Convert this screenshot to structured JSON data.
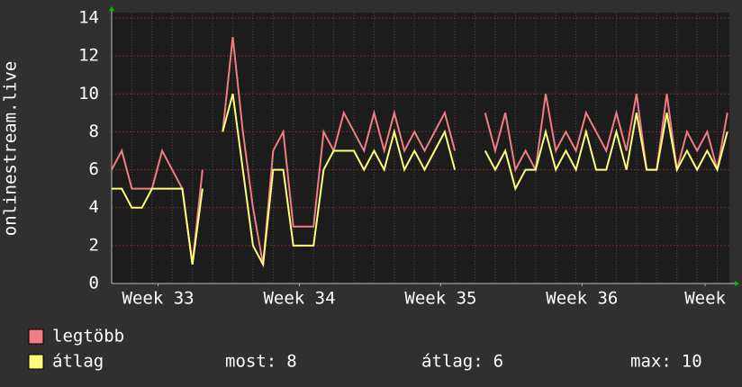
{
  "chart_data": {
    "type": "line",
    "ylabel": "onlinestream.live",
    "x": [
      0,
      0.5,
      1,
      1.5,
      2,
      2.5,
      3,
      3.5,
      4,
      4.5,
      5,
      5.5,
      6,
      6.5,
      7,
      7.5,
      8,
      8.5,
      9,
      9.5,
      10,
      10.5,
      11,
      11.5,
      12,
      12.5,
      13,
      13.5,
      14,
      14.5,
      15,
      15.5,
      16,
      16.5,
      17,
      17.5,
      18,
      18.5,
      19,
      19.5,
      20,
      20.5,
      21,
      21.5,
      22,
      22.5,
      23,
      23.5,
      24,
      24.5,
      25,
      25.5,
      26,
      26.5,
      27,
      27.5,
      28,
      28.5,
      29,
      29.5,
      30,
      30.5
    ],
    "series": [
      {
        "name": "legtöbb",
        "color": "#f27c84",
        "values": [
          6,
          7,
          5,
          5,
          5,
          7,
          6,
          5,
          1,
          6,
          null,
          8,
          13,
          8,
          4,
          1,
          7,
          8,
          3,
          3,
          3,
          8,
          7,
          9,
          8,
          7,
          9,
          7,
          9,
          7,
          8,
          7,
          8,
          9,
          7,
          null,
          null,
          9,
          7,
          9,
          6,
          7,
          6,
          10,
          7,
          8,
          7,
          9,
          8,
          7,
          9,
          7,
          10,
          6,
          6,
          10,
          6,
          8,
          7,
          8,
          6,
          9
        ]
      },
      {
        "name": "átlag",
        "color": "#ffff7a",
        "values": [
          5,
          5,
          4,
          4,
          5,
          5,
          5,
          5,
          1,
          5,
          null,
          8,
          10,
          6,
          2,
          1,
          6,
          6,
          2,
          2,
          2,
          6,
          7,
          7,
          7,
          6,
          7,
          6,
          8,
          6,
          7,
          6,
          7,
          8,
          6,
          null,
          null,
          7,
          6,
          7,
          5,
          6,
          6,
          8,
          6,
          7,
          6,
          8,
          6,
          6,
          8,
          6,
          9,
          6,
          6,
          9,
          6,
          7,
          6,
          7,
          6,
          8
        ]
      }
    ],
    "xlim": [
      0,
      30.6
    ],
    "xticks": [
      {
        "value": 2.3,
        "label": "Week 33"
      },
      {
        "value": 9.3,
        "label": "Week 34"
      },
      {
        "value": 16.3,
        "label": "Week 35"
      },
      {
        "value": 23.3,
        "label": "Week 36"
      },
      {
        "value": 29.4,
        "label": "Week"
      }
    ],
    "ylim": [
      0,
      14
    ],
    "yticks": [
      0,
      2,
      4,
      6,
      8,
      10,
      12,
      14
    ],
    "grid": true,
    "stats": [
      {
        "label": "most:",
        "value": 8
      },
      {
        "label": "átlag:",
        "value": 6
      },
      {
        "label": "max:",
        "value": 10
      }
    ]
  }
}
